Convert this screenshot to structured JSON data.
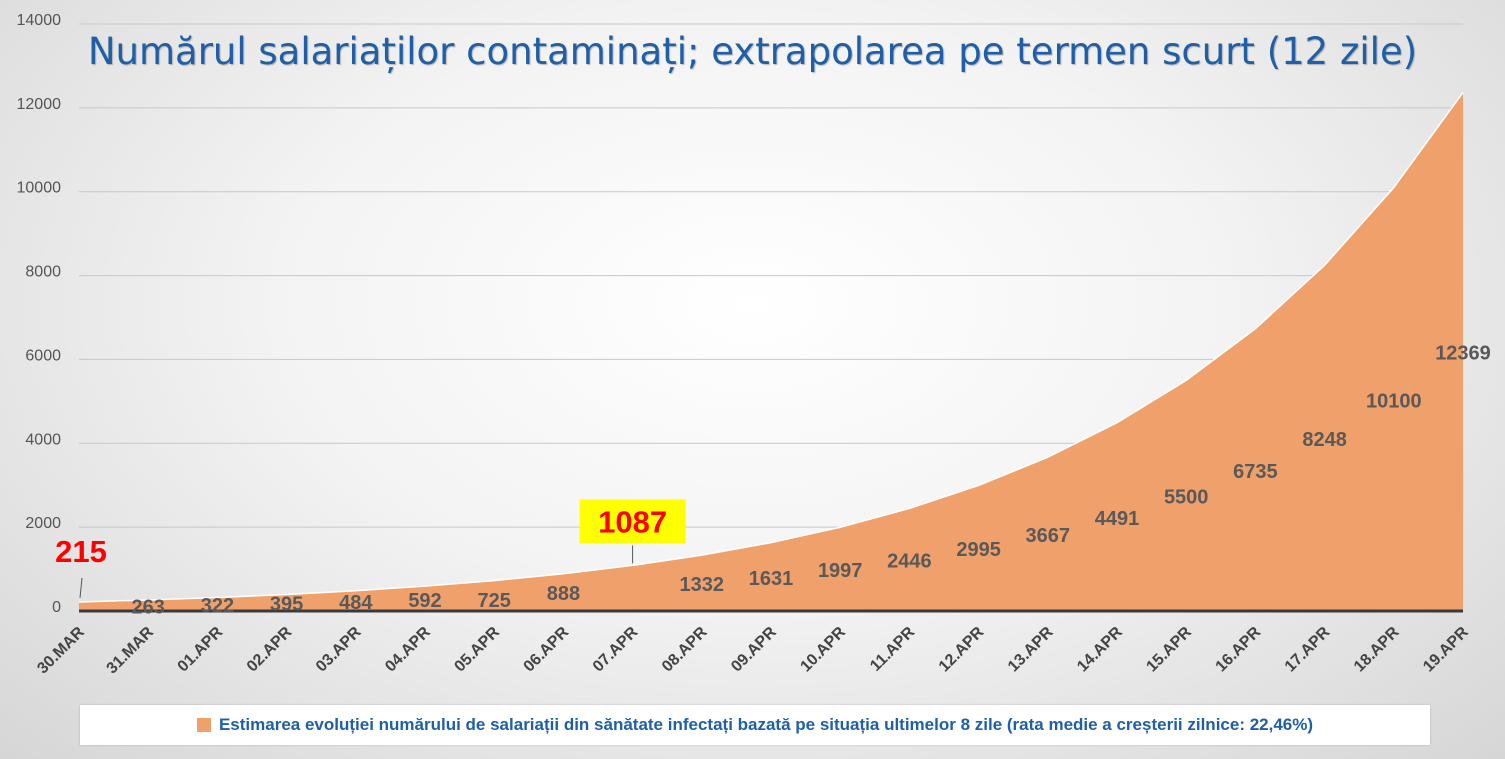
{
  "chart_data": {
    "type": "area",
    "title": "Numărul salariaților contaminați; extrapolarea pe termen scurt (12 zile)",
    "categories": [
      "30.MAR",
      "31.MAR",
      "01.APR",
      "02.APR",
      "03.APR",
      "04.APR",
      "05.APR",
      "06.APR",
      "07.APR",
      "08.APR",
      "09.APR",
      "10.APR",
      "11.APR",
      "12.APR",
      "13.APR",
      "14.APR",
      "15.APR",
      "16.APR",
      "17.APR",
      "18.APR",
      "19.APR"
    ],
    "series": [
      {
        "name": "Estimarea evoluției numărului de salariații din sănătate infectați bazată pe situația ultimelor 8 zile (rata medie a creșterii zilnice: 22,46%)",
        "values": [
          215,
          263,
          322,
          395,
          484,
          592,
          725,
          888,
          1087,
          1332,
          1631,
          1997,
          2446,
          2995,
          3667,
          4491,
          5500,
          6735,
          8248,
          10100,
          12369
        ],
        "labels": [
          "215",
          "263",
          "322",
          "395",
          "484",
          "592",
          "725",
          "888",
          "1087",
          "1332",
          "1631",
          "1997",
          "2446",
          "2995",
          "3667",
          "4491",
          "5500",
          "6735",
          "8248",
          "10100",
          "12369"
        ]
      }
    ],
    "yticks": [
      "0",
      "2000",
      "4000",
      "6000",
      "8000",
      "10000",
      "12000",
      "14000"
    ],
    "ylim": [
      0,
      14000
    ],
    "grid": true,
    "legend_position": "bottom",
    "colors": {
      "fill": "#f0a06a",
      "baseline": "#3a3a3a",
      "title": "#1f5fa8",
      "highlight_red": "#ff0000",
      "highlight_box": "#ffff00"
    },
    "highlights": [
      {
        "index": 0,
        "style": "red"
      },
      {
        "index": 7,
        "style": "black"
      },
      {
        "index": 8,
        "style": "red-on-yellow"
      }
    ]
  }
}
